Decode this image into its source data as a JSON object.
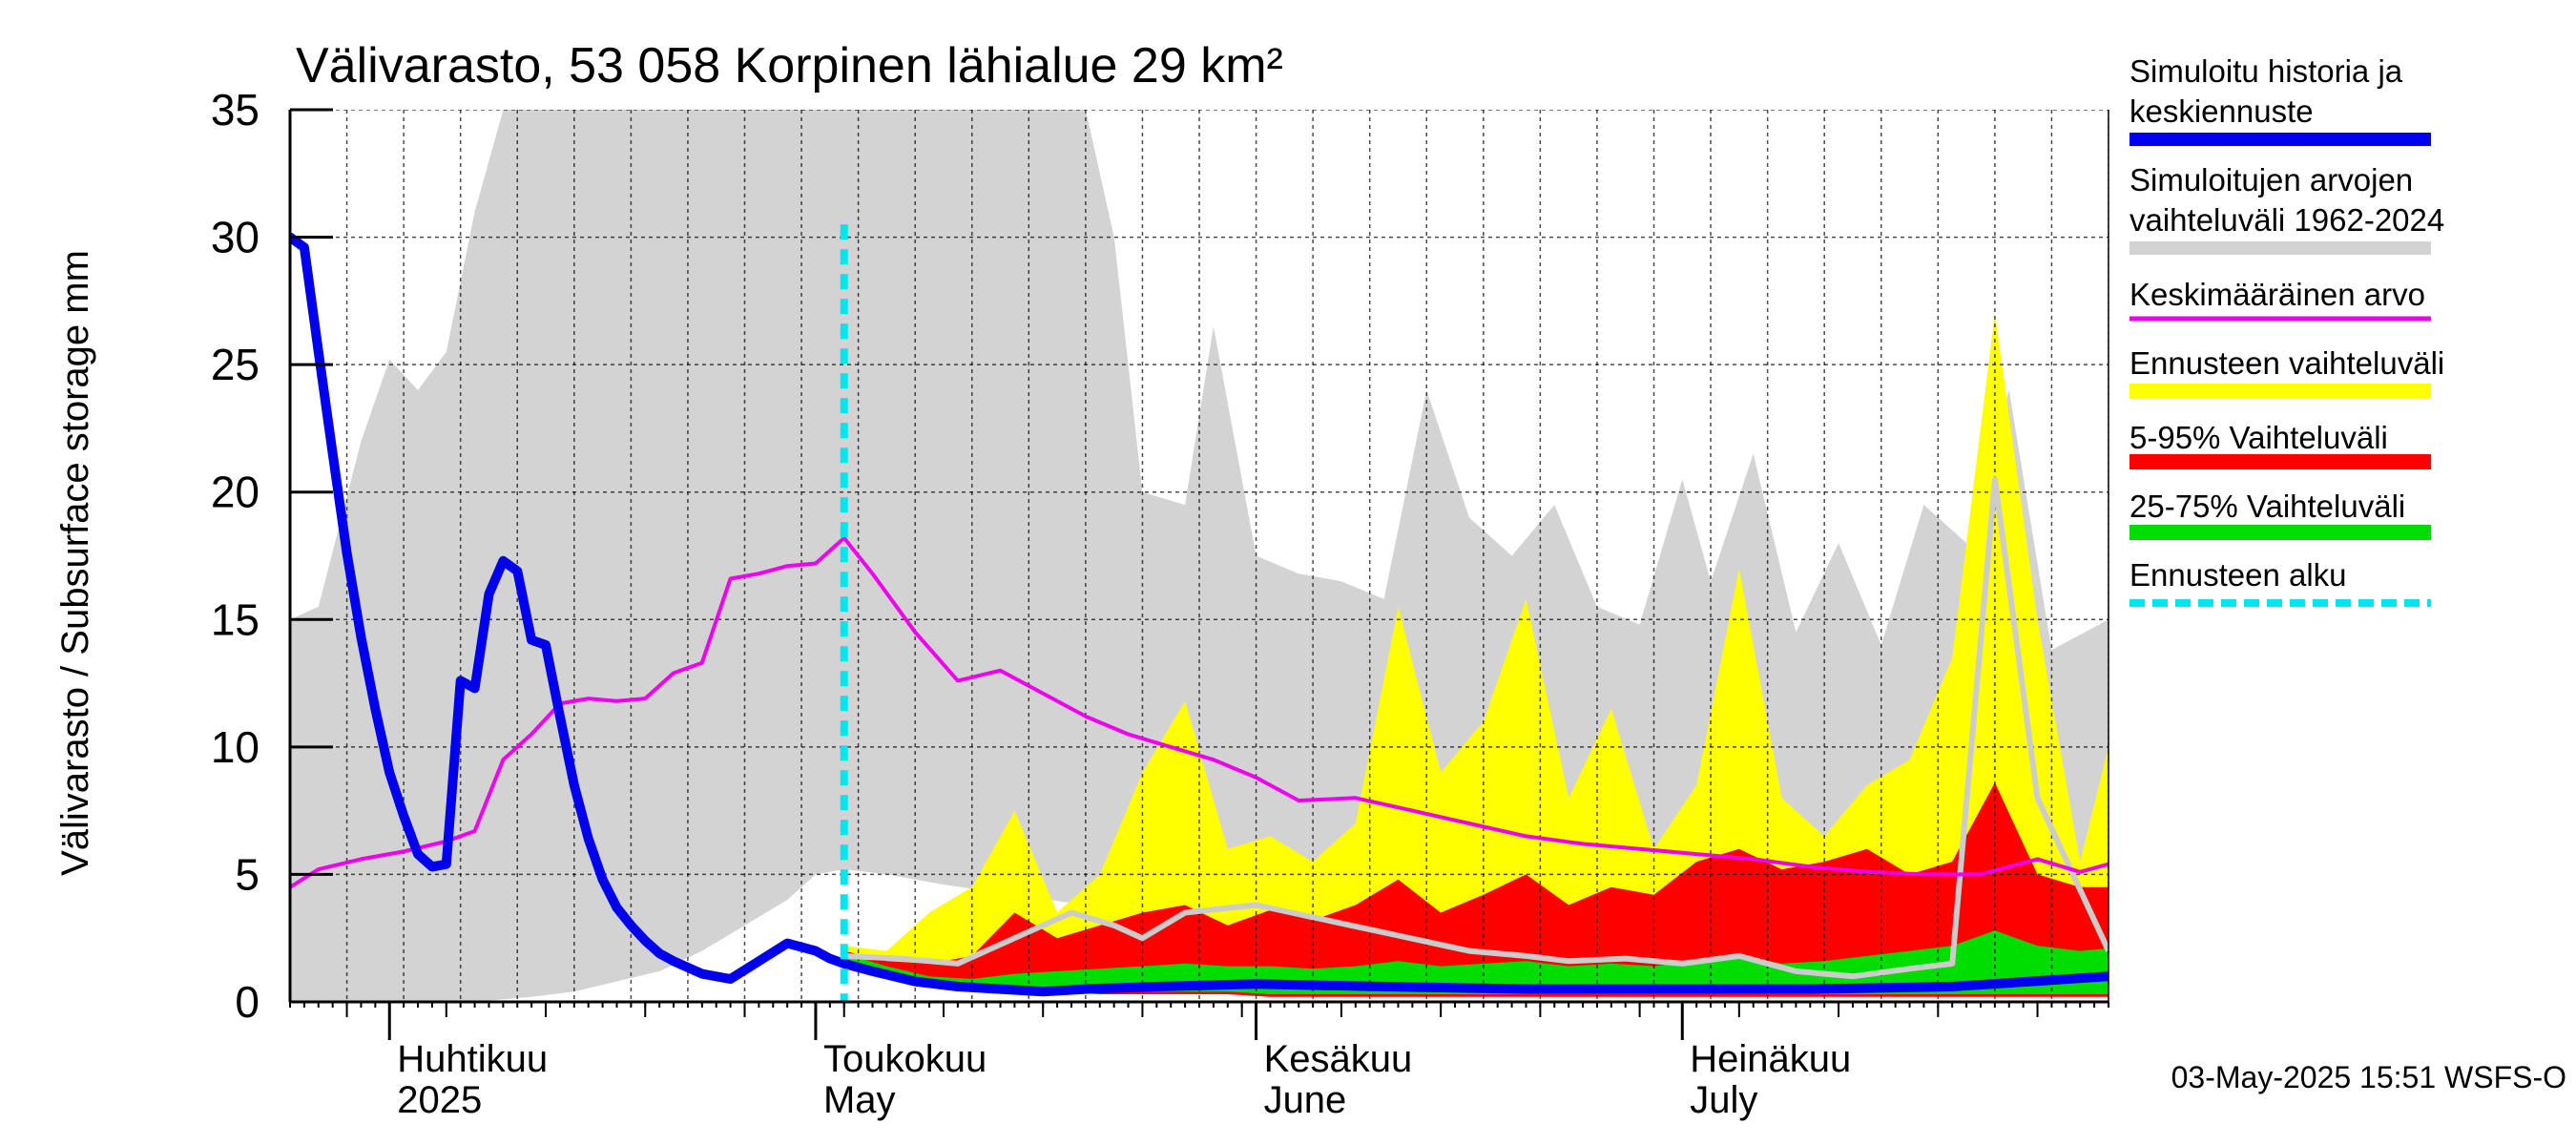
{
  "chart_data": {
    "type": "area",
    "title": "Välivarasto, 53 058 Korpinen lähialue 29 km²",
    "ylabel": "Välivarasto / Subsurface storage  mm",
    "ylim": [
      0,
      35
    ],
    "yticks": [
      0,
      5,
      10,
      15,
      20,
      25,
      30,
      35
    ],
    "y_tick_labels": [
      "0",
      "5",
      "10",
      "15",
      "20",
      "25",
      "30",
      "35"
    ],
    "xlim": [
      "2025-03-25",
      "2025-07-31"
    ],
    "grid": true,
    "legend_position": "right",
    "month_labels": [
      {
        "fi": "Huhtikuu",
        "en": "2025",
        "date": "2025-04-01"
      },
      {
        "fi": "Toukokuu",
        "en": "May",
        "date": "2025-05-01"
      },
      {
        "fi": "Kesäkuu",
        "en": "June",
        "date": "2025-06-01"
      },
      {
        "fi": "Heinäkuu",
        "en": "July",
        "date": "2025-07-01"
      }
    ],
    "forecast_start": "2025-05-03",
    "history_range": {
      "name": "Simuloitujen arvojen vaihteluväli 1962-2024",
      "color": "#d3d3d3",
      "x": [
        "2025-03-25",
        "2025-03-27",
        "2025-03-30",
        "2025-04-01",
        "2025-04-03",
        "2025-04-05",
        "2025-04-07",
        "2025-04-09",
        "2025-04-11",
        "2025-04-14",
        "2025-04-17",
        "2025-04-20",
        "2025-04-23",
        "2025-04-26",
        "2025-04-29",
        "2025-05-01",
        "2025-05-03",
        "2025-05-06",
        "2025-05-10",
        "2025-05-15",
        "2025-05-20",
        "2025-05-22",
        "2025-05-24",
        "2025-05-27",
        "2025-05-29",
        "2025-06-01",
        "2025-06-04",
        "2025-06-07",
        "2025-06-10",
        "2025-06-13",
        "2025-06-16",
        "2025-06-19",
        "2025-06-22",
        "2025-06-25",
        "2025-06-28",
        "2025-07-01",
        "2025-07-03",
        "2025-07-06",
        "2025-07-09",
        "2025-07-12",
        "2025-07-15",
        "2025-07-18",
        "2025-07-21",
        "2025-07-24",
        "2025-07-27",
        "2025-07-31"
      ],
      "upper": [
        15.0,
        15.5,
        22.0,
        25.2,
        24.0,
        25.5,
        31.0,
        35.0,
        35.0,
        35.0,
        35.0,
        35.0,
        35.0,
        35.0,
        35.0,
        35.0,
        35.0,
        35.0,
        35.0,
        35.0,
        35.0,
        30.0,
        20.0,
        19.5,
        26.5,
        17.5,
        16.8,
        16.5,
        15.8,
        24.0,
        19.0,
        17.5,
        19.5,
        15.5,
        14.8,
        20.5,
        16.5,
        21.5,
        14.5,
        18.0,
        14.0,
        19.5,
        18.0,
        24.0,
        13.8,
        15.0
      ],
      "lower": [
        0.0,
        0.0,
        0.0,
        0.0,
        0.0,
        0.0,
        0.0,
        0.1,
        0.2,
        0.4,
        0.8,
        1.2,
        2.0,
        3.0,
        4.0,
        5.0,
        5.2,
        5.0,
        4.6,
        4.2,
        3.8,
        3.5,
        3.3,
        3.0,
        2.8,
        2.5,
        2.2,
        2.0,
        1.8,
        1.6,
        1.5,
        1.4,
        1.3,
        1.2,
        1.1,
        1.0,
        1.0,
        0.9,
        0.9,
        0.9,
        0.8,
        0.8,
        0.8,
        0.7,
        0.7,
        0.7
      ]
    },
    "forecast_range": {
      "name": "Ennusteen vaihteluväli",
      "color": "#ffff00",
      "x": [
        "2025-05-03",
        "2025-05-06",
        "2025-05-09",
        "2025-05-12",
        "2025-05-15",
        "2025-05-18",
        "2025-05-21",
        "2025-05-24",
        "2025-05-27",
        "2025-05-30",
        "2025-06-02",
        "2025-06-05",
        "2025-06-08",
        "2025-06-11",
        "2025-06-14",
        "2025-06-17",
        "2025-06-20",
        "2025-06-23",
        "2025-06-26",
        "2025-06-29",
        "2025-07-02",
        "2025-07-05",
        "2025-07-08",
        "2025-07-11",
        "2025-07-14",
        "2025-07-17",
        "2025-07-20",
        "2025-07-23",
        "2025-07-26",
        "2025-07-29",
        "2025-07-31"
      ],
      "upper": [
        2.2,
        2.0,
        3.5,
        4.5,
        7.5,
        3.5,
        5.0,
        9.0,
        11.8,
        6.0,
        6.5,
        5.5,
        7.0,
        15.5,
        9.0,
        11.0,
        15.8,
        8.0,
        11.5,
        6.0,
        8.5,
        17.0,
        8.0,
        6.5,
        8.5,
        9.5,
        13.5,
        27.0,
        15.0,
        5.5,
        10.0
      ],
      "lower": [
        1.8,
        1.4,
        1.1,
        0.9,
        0.7,
        0.6,
        0.5,
        0.5,
        0.4,
        0.4,
        0.4,
        0.3,
        0.3,
        0.3,
        0.3,
        0.3,
        0.3,
        0.3,
        0.3,
        0.3,
        0.3,
        0.3,
        0.3,
        0.3,
        0.3,
        0.3,
        0.3,
        0.3,
        0.3,
        0.3,
        0.3
      ]
    },
    "range_5_95": {
      "name": "5-95% Vaihteluväli",
      "color": "#ff0000",
      "x": [
        "2025-05-03",
        "2025-05-06",
        "2025-05-09",
        "2025-05-12",
        "2025-05-15",
        "2025-05-18",
        "2025-05-21",
        "2025-05-24",
        "2025-05-27",
        "2025-05-30",
        "2025-06-02",
        "2025-06-05",
        "2025-06-08",
        "2025-06-11",
        "2025-06-14",
        "2025-06-17",
        "2025-06-20",
        "2025-06-23",
        "2025-06-26",
        "2025-06-29",
        "2025-07-02",
        "2025-07-05",
        "2025-07-08",
        "2025-07-11",
        "2025-07-14",
        "2025-07-17",
        "2025-07-20",
        "2025-07-23",
        "2025-07-26",
        "2025-07-29",
        "2025-07-31"
      ],
      "upper": [
        2.0,
        1.6,
        1.5,
        1.8,
        3.5,
        2.5,
        3.0,
        3.5,
        3.8,
        3.0,
        3.6,
        3.2,
        3.8,
        4.8,
        3.5,
        4.2,
        5.0,
        3.8,
        4.5,
        4.2,
        5.5,
        6.0,
        5.2,
        5.5,
        6.0,
        5.0,
        5.5,
        8.6,
        5.0,
        4.5,
        4.5
      ],
      "lower": [
        1.5,
        1.1,
        0.8,
        0.6,
        0.5,
        0.4,
        0.3,
        0.3,
        0.3,
        0.3,
        0.2,
        0.2,
        0.2,
        0.2,
        0.2,
        0.2,
        0.2,
        0.2,
        0.2,
        0.2,
        0.2,
        0.2,
        0.2,
        0.2,
        0.2,
        0.2,
        0.2,
        0.2,
        0.2,
        0.2,
        0.2
      ]
    },
    "range_25_75": {
      "name": "25-75% Vaihteluväli",
      "color": "#00dd00",
      "x": [
        "2025-05-03",
        "2025-05-06",
        "2025-05-09",
        "2025-05-12",
        "2025-05-15",
        "2025-05-18",
        "2025-05-21",
        "2025-05-24",
        "2025-05-27",
        "2025-05-30",
        "2025-06-02",
        "2025-06-05",
        "2025-06-08",
        "2025-06-11",
        "2025-06-14",
        "2025-06-17",
        "2025-06-20",
        "2025-06-23",
        "2025-06-26",
        "2025-06-29",
        "2025-07-02",
        "2025-07-05",
        "2025-07-08",
        "2025-07-11",
        "2025-07-14",
        "2025-07-17",
        "2025-07-20",
        "2025-07-23",
        "2025-07-26",
        "2025-07-29",
        "2025-07-31"
      ],
      "upper": [
        1.9,
        1.4,
        1.0,
        0.9,
        1.1,
        1.2,
        1.3,
        1.4,
        1.5,
        1.4,
        1.4,
        1.3,
        1.4,
        1.6,
        1.4,
        1.5,
        1.6,
        1.4,
        1.5,
        1.4,
        1.6,
        1.8,
        1.5,
        1.6,
        1.8,
        2.0,
        2.2,
        2.8,
        2.2,
        2.0,
        2.1
      ],
      "lower": [
        1.6,
        1.2,
        0.8,
        0.6,
        0.5,
        0.4,
        0.4,
        0.4,
        0.4,
        0.4,
        0.3,
        0.3,
        0.3,
        0.3,
        0.3,
        0.3,
        0.3,
        0.3,
        0.3,
        0.3,
        0.3,
        0.3,
        0.3,
        0.3,
        0.3,
        0.3,
        0.3,
        0.3,
        0.3,
        0.3,
        0.3
      ]
    },
    "series": [
      {
        "name": "Keskimääräinen arvo",
        "color": "#ee00ee",
        "x": [
          "2025-03-25",
          "2025-03-27",
          "2025-03-30",
          "2025-04-02",
          "2025-04-05",
          "2025-04-07",
          "2025-04-09",
          "2025-04-11",
          "2025-04-13",
          "2025-04-15",
          "2025-04-17",
          "2025-04-19",
          "2025-04-21",
          "2025-04-23",
          "2025-04-25",
          "2025-04-27",
          "2025-04-29",
          "2025-05-01",
          "2025-05-03",
          "2025-05-05",
          "2025-05-08",
          "2025-05-11",
          "2025-05-14",
          "2025-05-17",
          "2025-05-20",
          "2025-05-23",
          "2025-05-26",
          "2025-05-29",
          "2025-06-01",
          "2025-06-04",
          "2025-06-08",
          "2025-06-12",
          "2025-06-16",
          "2025-06-20",
          "2025-06-24",
          "2025-06-28",
          "2025-07-02",
          "2025-07-06",
          "2025-07-10",
          "2025-07-14",
          "2025-07-18",
          "2025-07-22",
          "2025-07-26",
          "2025-07-29",
          "2025-07-31"
        ],
        "values": [
          4.5,
          5.2,
          5.6,
          5.9,
          6.3,
          6.7,
          9.5,
          10.5,
          11.7,
          11.9,
          11.8,
          11.9,
          12.9,
          13.3,
          16.6,
          16.8,
          17.1,
          17.2,
          18.2,
          16.8,
          14.5,
          12.6,
          13.0,
          12.1,
          11.2,
          10.5,
          10.0,
          9.5,
          8.8,
          7.9,
          8.0,
          7.5,
          7.0,
          6.5,
          6.2,
          6.0,
          5.8,
          5.6,
          5.3,
          5.1,
          5.0,
          5.0,
          5.6,
          5.1,
          5.4
        ]
      },
      {
        "name": "Simuloitu historia ja keskiennuste",
        "color": "#0000ee",
        "x": [
          "2025-03-25",
          "2025-03-26",
          "2025-03-27",
          "2025-03-28",
          "2025-03-29",
          "2025-03-30",
          "2025-03-31",
          "2025-04-01",
          "2025-04-02",
          "2025-04-03",
          "2025-04-04",
          "2025-04-05",
          "2025-04-06",
          "2025-04-07",
          "2025-04-08",
          "2025-04-09",
          "2025-04-10",
          "2025-04-11",
          "2025-04-12",
          "2025-04-13",
          "2025-04-14",
          "2025-04-15",
          "2025-04-16",
          "2025-04-17",
          "2025-04-18",
          "2025-04-19",
          "2025-04-20",
          "2025-04-21",
          "2025-04-23",
          "2025-04-25",
          "2025-04-27",
          "2025-04-29",
          "2025-05-01",
          "2025-05-02",
          "2025-05-03",
          "2025-05-05",
          "2025-05-08",
          "2025-05-11",
          "2025-05-14",
          "2025-05-17",
          "2025-05-20",
          "2025-05-25",
          "2025-06-01",
          "2025-06-10",
          "2025-06-20",
          "2025-07-01",
          "2025-07-10",
          "2025-07-20",
          "2025-07-31"
        ],
        "values": [
          30.0,
          29.6,
          25.5,
          21.5,
          17.6,
          14.3,
          11.5,
          9.0,
          7.3,
          5.8,
          5.3,
          5.4,
          12.6,
          12.3,
          16.0,
          17.3,
          16.9,
          14.2,
          14.0,
          11.2,
          8.5,
          6.4,
          4.8,
          3.7,
          3.0,
          2.4,
          1.9,
          1.6,
          1.1,
          0.9,
          1.6,
          2.3,
          2.0,
          1.7,
          1.5,
          1.2,
          0.8,
          0.6,
          0.5,
          0.4,
          0.5,
          0.6,
          0.7,
          0.6,
          0.5,
          0.5,
          0.5,
          0.6,
          1.0
        ]
      },
      {
        "name": "",
        "color": "#cccccc",
        "x": [
          "2025-05-03",
          "2025-05-07",
          "2025-05-11",
          "2025-05-15",
          "2025-05-19",
          "2025-05-22",
          "2025-05-24",
          "2025-05-27",
          "2025-06-01",
          "2025-06-06",
          "2025-06-11",
          "2025-06-16",
          "2025-06-20",
          "2025-06-23",
          "2025-06-27",
          "2025-07-01",
          "2025-07-05",
          "2025-07-09",
          "2025-07-13",
          "2025-07-17",
          "2025-07-20",
          "2025-07-23",
          "2025-07-26",
          "2025-07-31"
        ],
        "values": [
          1.8,
          1.7,
          1.5,
          2.5,
          3.5,
          3.0,
          2.5,
          3.5,
          3.8,
          3.2,
          2.6,
          2.0,
          1.8,
          1.6,
          1.7,
          1.5,
          1.8,
          1.2,
          1.0,
          1.3,
          1.5,
          20.5,
          8.0,
          2.0
        ]
      }
    ],
    "legend": [
      {
        "label": "Simuloitu historia ja keskiennuste",
        "color": "#0000ee"
      },
      {
        "label": "Simuloitujen arvojen vaihteluväli 1962-2024",
        "color": "#d3d3d3"
      },
      {
        "label": "Keskimääräinen arvo",
        "color": "#ee00ee"
      },
      {
        "label": "Ennusteen vaihteluväli",
        "color": "#ffff00"
      },
      {
        "label": "5-95% Vaihteluväli",
        "color": "#ff0000"
      },
      {
        "label": "25-75% Vaihteluväli",
        "color": "#00dd00"
      },
      {
        "label": "Ennusteen alku",
        "color": "#00e5ee"
      }
    ],
    "footer": "03-May-2025 15:51 WSFS-O"
  }
}
